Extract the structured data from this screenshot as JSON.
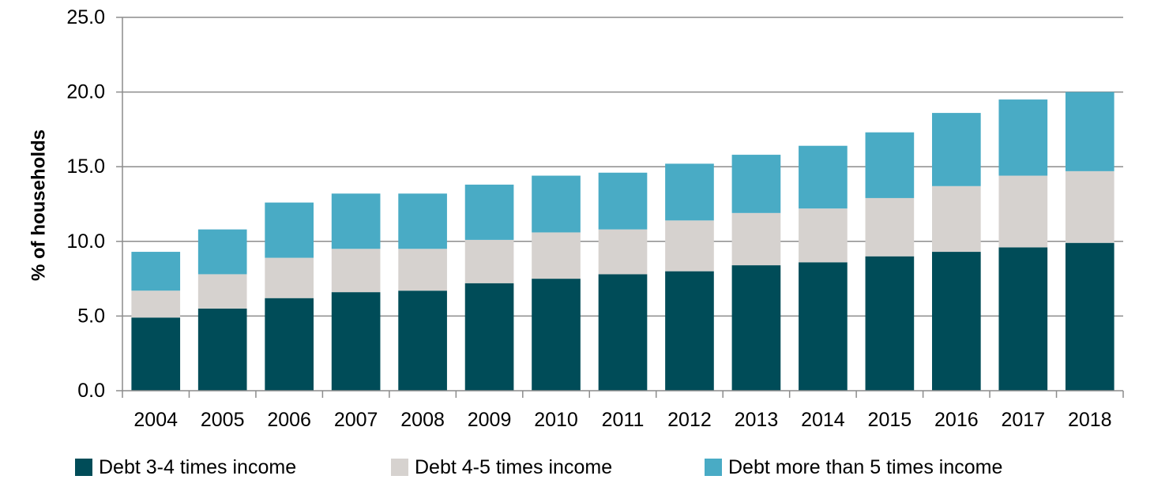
{
  "chart_data": {
    "type": "bar",
    "stacked": true,
    "title": "",
    "xlabel": "",
    "ylabel": "% of households",
    "ylim": [
      0,
      25
    ],
    "yticks": [
      "0.0",
      "5.0",
      "10.0",
      "15.0",
      "20.0",
      "25.0"
    ],
    "grid": true,
    "legend_position": "bottom",
    "categories": [
      "2004",
      "2005",
      "2006",
      "2007",
      "2008",
      "2009",
      "2010",
      "2011",
      "2012",
      "2013",
      "2014",
      "2015",
      "2016",
      "2017",
      "2018"
    ],
    "series": [
      {
        "name": "Debt 3-4 times income",
        "color": "#004c58",
        "values": [
          4.9,
          5.5,
          6.2,
          6.6,
          6.7,
          7.2,
          7.5,
          7.8,
          8.0,
          8.4,
          8.6,
          9.0,
          9.3,
          9.6,
          9.9
        ]
      },
      {
        "name": "Debt 4-5 times income",
        "color": "#d6d2cf",
        "values": [
          1.8,
          2.3,
          2.7,
          2.9,
          2.8,
          2.9,
          3.1,
          3.0,
          3.4,
          3.5,
          3.6,
          3.9,
          4.4,
          4.8,
          4.8
        ]
      },
      {
        "name": "Debt more than 5 times income",
        "color": "#49abc5",
        "values": [
          2.6,
          3.0,
          3.7,
          3.7,
          3.7,
          3.7,
          3.8,
          3.8,
          3.8,
          3.9,
          4.2,
          4.4,
          4.9,
          5.1,
          5.3
        ]
      }
    ]
  }
}
